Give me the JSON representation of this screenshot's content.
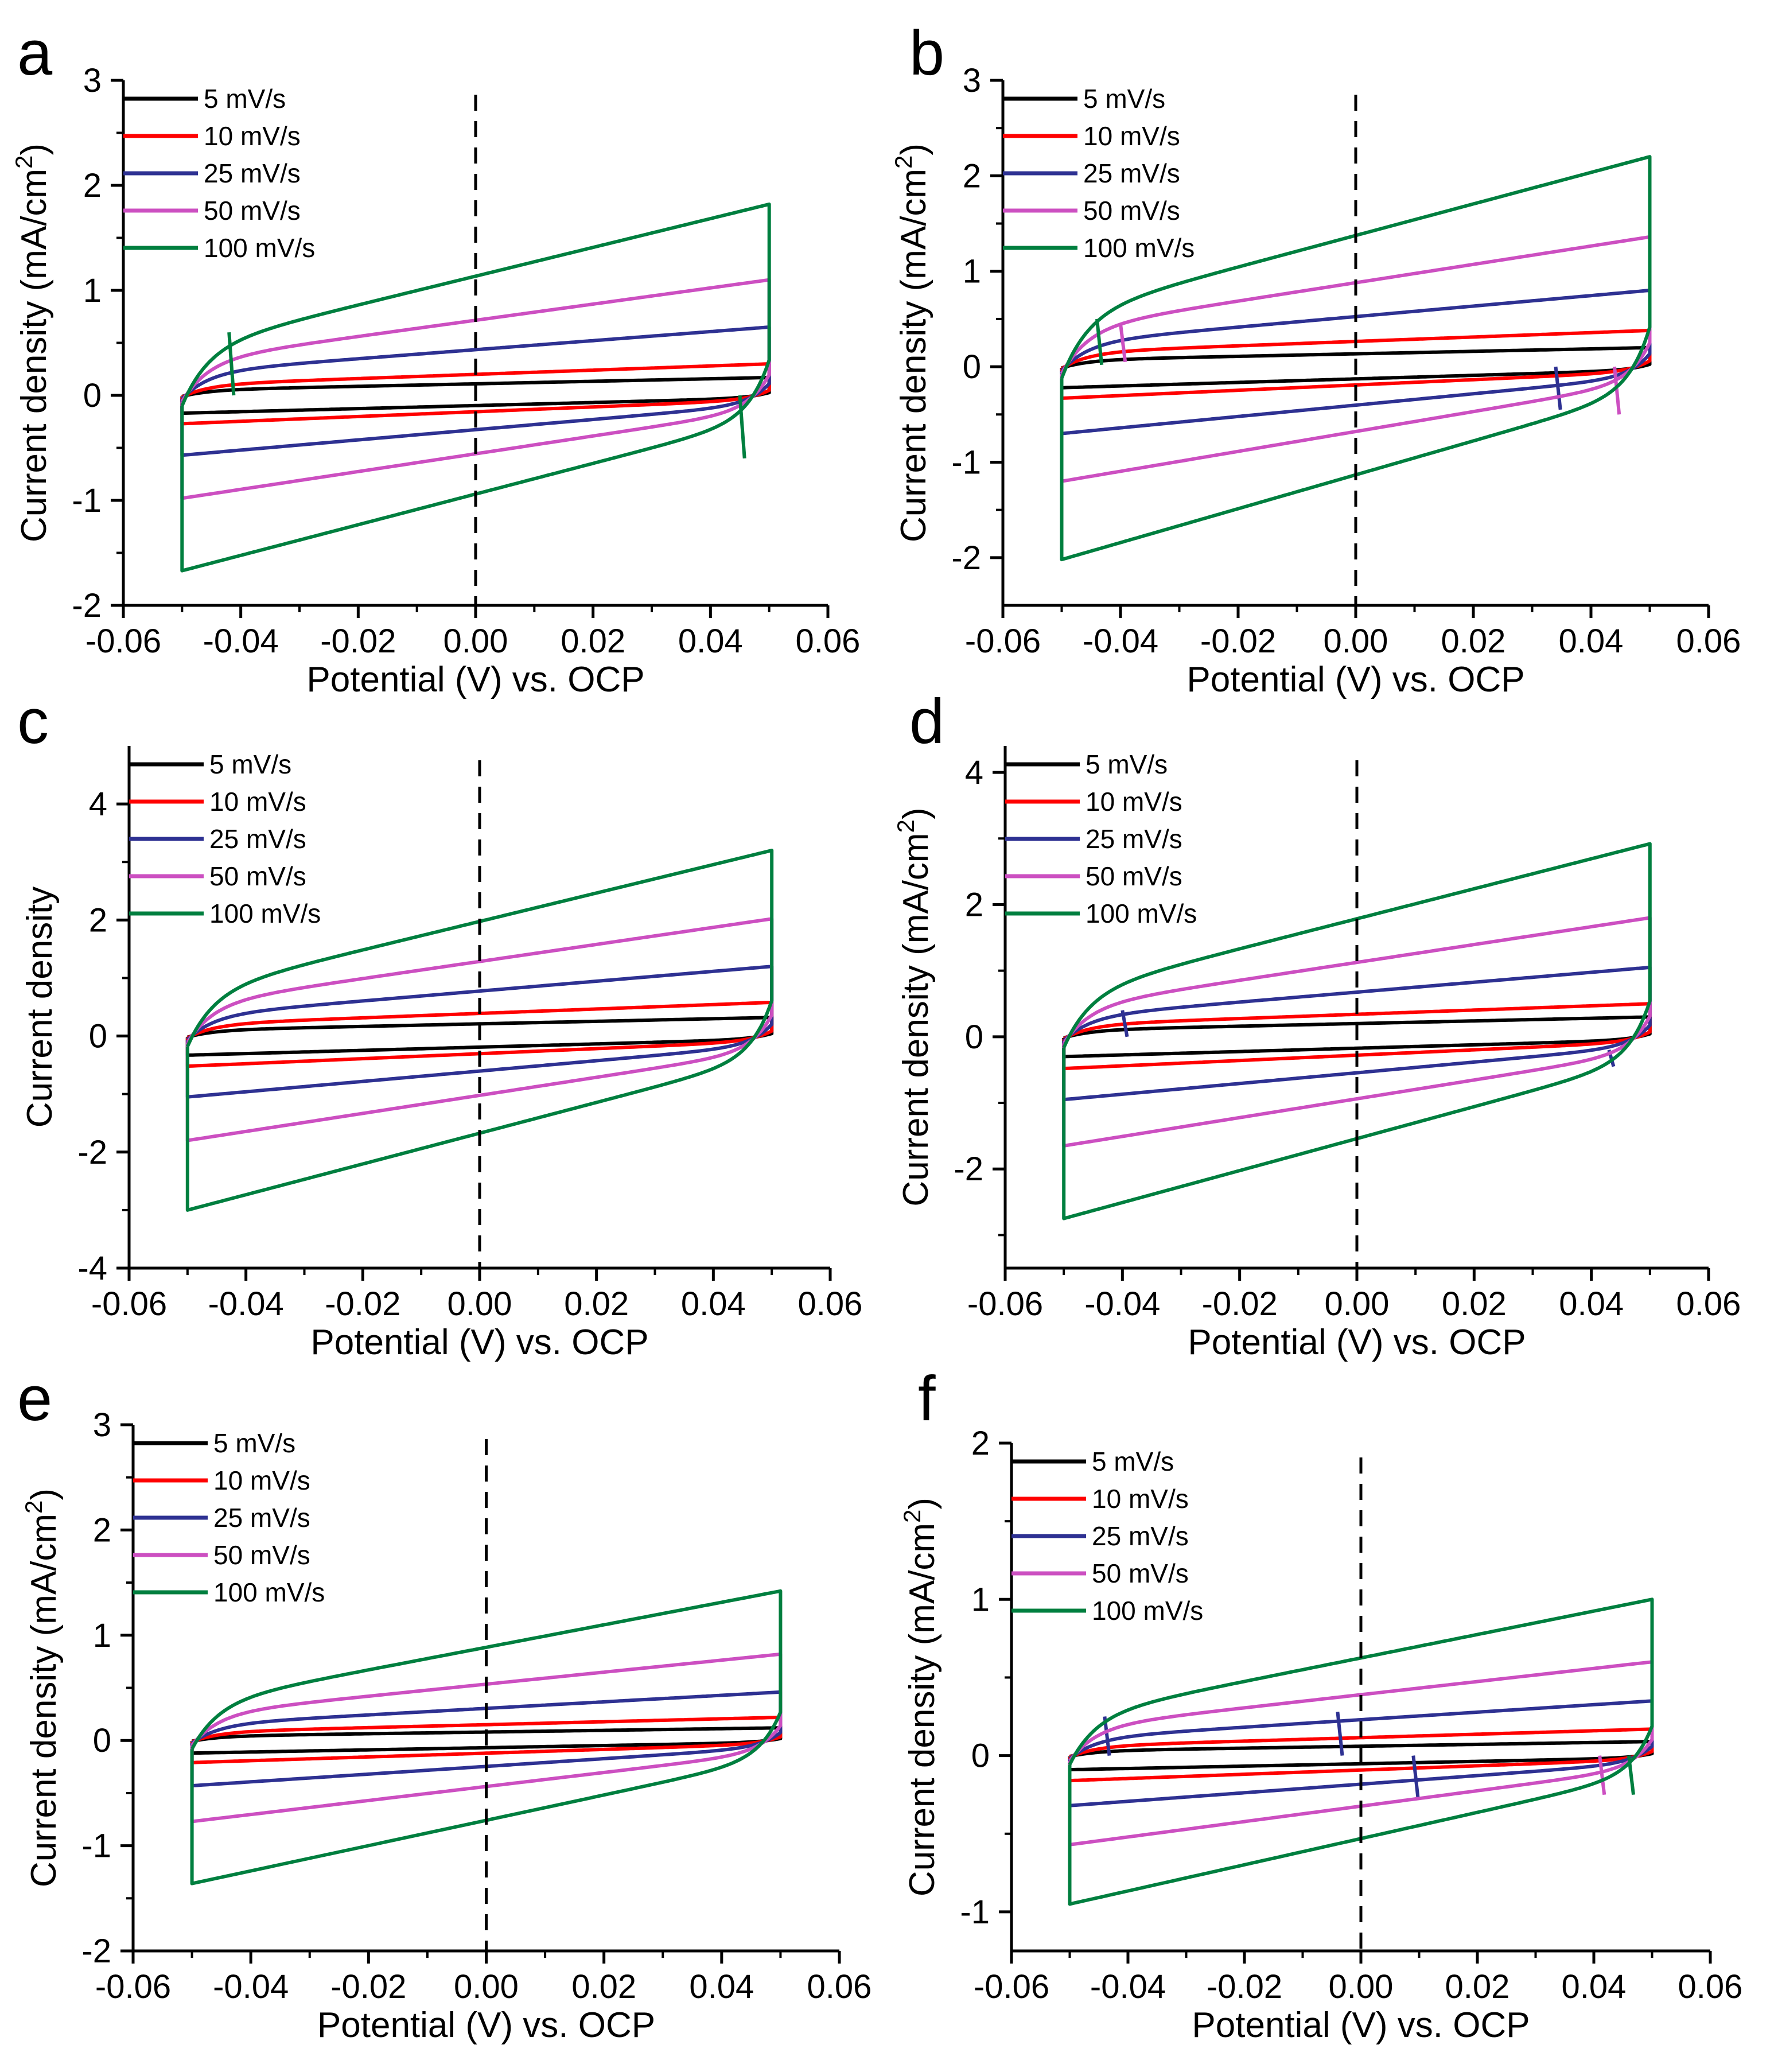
{
  "figure": {
    "shared_xlabel": "Potential (V) vs. OCP"
  },
  "chart_data": [
    {
      "panel": "a",
      "type": "line",
      "title": "",
      "xlabel": "Potential (V) vs. OCP",
      "ylabel": "Current density (mA/cm",
      "ylabel_sup": "2",
      "ylabel_end": ")",
      "xlim": [
        -0.06,
        0.06
      ],
      "ylim": [
        -2,
        3
      ],
      "xticks": [
        -0.06,
        -0.04,
        -0.02,
        0.0,
        0.02,
        0.04,
        0.06
      ],
      "xtick_labels": [
        "-0.06",
        "-0.04",
        "-0.02",
        "0.00",
        "0.02",
        "0.04",
        "0.06"
      ],
      "yticks": [
        -2,
        -1,
        0,
        1,
        2,
        3
      ],
      "ytick_labels": [
        "-2",
        "-1",
        "0",
        "1",
        "2",
        "3"
      ],
      "vline_x": 0.0,
      "legend_position": "top-left",
      "series": [
        {
          "name": "5 mV/s",
          "color": "#000000",
          "upper_start": 0.05,
          "upper_end": 0.17,
          "lower_start": -0.17,
          "lower_end": -0.07,
          "glitches": []
        },
        {
          "name": "10 mV/s",
          "color": "#ff0000",
          "upper_start": 0.1,
          "upper_end": 0.3,
          "lower_start": -0.27,
          "lower_end": -0.12,
          "glitches": []
        },
        {
          "name": "25 mV/s",
          "color": "#2e3192",
          "upper_start": 0.22,
          "upper_end": 0.65,
          "lower_start": -0.57,
          "lower_end": -0.24,
          "glitches": []
        },
        {
          "name": "50 mV/s",
          "color": "#cc4fc1",
          "upper_start": 0.33,
          "upper_end": 1.1,
          "lower_start": -0.98,
          "lower_end": -0.38,
          "glitches": []
        },
        {
          "name": "100 mV/s",
          "color": "#007f3f",
          "upper_start": 0.45,
          "upper_end": 1.82,
          "lower_start": -1.67,
          "lower_end": -0.6,
          "glitches": [
            {
              "x": -0.042,
              "y_top": 0.6,
              "y_bottom": 0.0
            },
            {
              "x": 0.045,
              "y_top": 0.0,
              "y_bottom": -0.6
            }
          ]
        }
      ]
    },
    {
      "panel": "b",
      "type": "line",
      "title": "",
      "xlabel": "Potential (V) vs. OCP",
      "ylabel": "Current density (mA/cm",
      "ylabel_sup": "2",
      "ylabel_end": ")",
      "xlim": [
        -0.06,
        0.06
      ],
      "ylim": [
        -2.5,
        3
      ],
      "xticks": [
        -0.06,
        -0.04,
        -0.02,
        0.0,
        0.02,
        0.04,
        0.06
      ],
      "xtick_labels": [
        "-0.06",
        "-0.04",
        "-0.02",
        "0.00",
        "0.02",
        "0.04",
        "0.06"
      ],
      "yticks": [
        -2,
        -1,
        0,
        1,
        2,
        3
      ],
      "ytick_labels": [
        "-2",
        "-1",
        "0",
        "1",
        "2",
        "3"
      ],
      "vline_x": 0.0,
      "legend_position": "top-left",
      "series": [
        {
          "name": "5 mV/s",
          "color": "#000000",
          "upper_start": 0.07,
          "upper_end": 0.2,
          "lower_start": -0.22,
          "lower_end": -0.1,
          "glitches": []
        },
        {
          "name": "10 mV/s",
          "color": "#ff0000",
          "upper_start": 0.15,
          "upper_end": 0.38,
          "lower_start": -0.33,
          "lower_end": -0.15,
          "glitches": []
        },
        {
          "name": "25 mV/s",
          "color": "#2e3192",
          "upper_start": 0.25,
          "upper_end": 0.8,
          "lower_start": -0.7,
          "lower_end": -0.3,
          "glitches": [
            {
              "x": 0.034,
              "y_top": 0.0,
              "y_bottom": -0.45
            }
          ]
        },
        {
          "name": "50 mV/s",
          "color": "#cc4fc1",
          "upper_start": 0.4,
          "upper_end": 1.36,
          "lower_start": -1.2,
          "lower_end": -0.45,
          "glitches": [
            {
              "x": -0.04,
              "y_top": 0.45,
              "y_bottom": 0.05
            },
            {
              "x": 0.044,
              "y_top": 0.0,
              "y_bottom": -0.5
            }
          ]
        },
        {
          "name": "100 mV/s",
          "color": "#007f3f",
          "upper_start": 0.55,
          "upper_end": 2.2,
          "lower_start": -2.02,
          "lower_end": -0.7,
          "glitches": [
            {
              "x": -0.044,
              "y_top": 0.5,
              "y_bottom": 0.02
            }
          ]
        }
      ]
    },
    {
      "panel": "c",
      "type": "line",
      "title": "",
      "xlabel": "Potential (V) vs. OCP",
      "ylabel": "Current density",
      "ylabel_sup": "",
      "ylabel_end": "",
      "xlim": [
        -0.06,
        0.06
      ],
      "ylim": [
        -4,
        5
      ],
      "xticks": [
        -0.06,
        -0.04,
        -0.02,
        0.0,
        0.02,
        0.04,
        0.06
      ],
      "xtick_labels": [
        "-0.06",
        "-0.04",
        "-0.02",
        "0.00",
        "0.02",
        "0.04",
        "0.06"
      ],
      "yticks": [
        -4,
        -2,
        0,
        2,
        4
      ],
      "ytick_labels": [
        "-4",
        "-2",
        "0",
        "2",
        "4"
      ],
      "vline_x": 0.0,
      "legend_position": "top-left",
      "series": [
        {
          "name": "5 mV/s",
          "color": "#000000",
          "upper_start": 0.1,
          "upper_end": 0.32,
          "lower_start": -0.33,
          "lower_end": -0.15,
          "glitches": []
        },
        {
          "name": "10 mV/s",
          "color": "#ff0000",
          "upper_start": 0.2,
          "upper_end": 0.58,
          "lower_start": -0.52,
          "lower_end": -0.25,
          "glitches": []
        },
        {
          "name": "25 mV/s",
          "color": "#2e3192",
          "upper_start": 0.35,
          "upper_end": 1.2,
          "lower_start": -1.05,
          "lower_end": -0.45,
          "glitches": []
        },
        {
          "name": "50 mV/s",
          "color": "#cc4fc1",
          "upper_start": 0.55,
          "upper_end": 2.02,
          "lower_start": -1.8,
          "lower_end": -0.7,
          "glitches": []
        },
        {
          "name": "100 mV/s",
          "color": "#007f3f",
          "upper_start": 0.75,
          "upper_end": 3.2,
          "lower_start": -3.0,
          "lower_end": -1.0,
          "glitches": []
        }
      ]
    },
    {
      "panel": "d",
      "type": "line",
      "title": "",
      "xlabel": "Potential (V) vs. OCP",
      "ylabel": "Current density (mA/cm",
      "ylabel_sup": "2",
      "ylabel_end": ")",
      "xlim": [
        -0.06,
        0.06
      ],
      "ylim": [
        -3.5,
        4.4
      ],
      "xticks": [
        -0.06,
        -0.04,
        -0.02,
        0.0,
        0.02,
        0.04,
        0.06
      ],
      "xtick_labels": [
        "-0.06",
        "-0.04",
        "-0.02",
        "0.00",
        "0.02",
        "0.04",
        "0.06"
      ],
      "yticks": [
        -2,
        0,
        2,
        4
      ],
      "ytick_labels": [
        "-2",
        "0",
        "2",
        "4"
      ],
      "vline_x": 0.0,
      "legend_position": "top-left",
      "series": [
        {
          "name": "5 mV/s",
          "color": "#000000",
          "upper_start": 0.1,
          "upper_end": 0.3,
          "lower_start": -0.3,
          "lower_end": -0.13,
          "glitches": []
        },
        {
          "name": "10 mV/s",
          "color": "#ff0000",
          "upper_start": 0.18,
          "upper_end": 0.5,
          "lower_start": -0.48,
          "lower_end": -0.22,
          "glitches": []
        },
        {
          "name": "25 mV/s",
          "color": "#2e3192",
          "upper_start": 0.3,
          "upper_end": 1.05,
          "lower_start": -0.95,
          "lower_end": -0.4,
          "glitches": [
            {
              "x": -0.04,
              "y_top": 0.4,
              "y_bottom": 0.0
            },
            {
              "x": 0.043,
              "y_top": -0.2,
              "y_bottom": -0.45
            }
          ]
        },
        {
          "name": "50 mV/s",
          "color": "#cc4fc1",
          "upper_start": 0.45,
          "upper_end": 1.8,
          "lower_start": -1.65,
          "lower_end": -0.65,
          "glitches": []
        },
        {
          "name": "100 mV/s",
          "color": "#007f3f",
          "upper_start": 0.65,
          "upper_end": 2.92,
          "lower_start": -2.75,
          "lower_end": -0.95,
          "glitches": []
        }
      ]
    },
    {
      "panel": "e",
      "type": "line",
      "title": "",
      "xlabel": "Potential (V) vs. OCP",
      "ylabel": "Current density (mA/cm",
      "ylabel_sup": "2",
      "ylabel_end": ")",
      "xlim": [
        -0.06,
        0.06
      ],
      "ylim": [
        -2,
        3
      ],
      "xticks": [
        -0.06,
        -0.04,
        -0.02,
        0.0,
        0.02,
        0.04,
        0.06
      ],
      "xtick_labels": [
        "-0.06",
        "-0.04",
        "-0.02",
        "0.00",
        "0.02",
        "0.04",
        "0.06"
      ],
      "yticks": [
        -2,
        -1,
        0,
        1,
        2,
        3
      ],
      "ytick_labels": [
        "-2",
        "-1",
        "0",
        "1",
        "2",
        "3"
      ],
      "vline_x": 0.0,
      "legend_position": "top-left",
      "series": [
        {
          "name": "5 mV/s",
          "color": "#000000",
          "upper_start": 0.04,
          "upper_end": 0.12,
          "lower_start": -0.12,
          "lower_end": -0.05,
          "glitches": []
        },
        {
          "name": "10 mV/s",
          "color": "#ff0000",
          "upper_start": 0.08,
          "upper_end": 0.22,
          "lower_start": -0.21,
          "lower_end": -0.09,
          "glitches": []
        },
        {
          "name": "25 mV/s",
          "color": "#2e3192",
          "upper_start": 0.15,
          "upper_end": 0.46,
          "lower_start": -0.43,
          "lower_end": -0.18,
          "glitches": []
        },
        {
          "name": "50 mV/s",
          "color": "#cc4fc1",
          "upper_start": 0.25,
          "upper_end": 0.82,
          "lower_start": -0.77,
          "lower_end": -0.3,
          "glitches": []
        },
        {
          "name": "100 mV/s",
          "color": "#007f3f",
          "upper_start": 0.35,
          "upper_end": 1.42,
          "lower_start": -1.36,
          "lower_end": -0.45,
          "glitches": []
        }
      ]
    },
    {
      "panel": "f",
      "type": "line",
      "title": "",
      "xlabel": "Potential (V) vs. OCP",
      "ylabel": "Current density (mA/cm",
      "ylabel_sup": "2",
      "ylabel_end": ")",
      "xlim": [
        -0.06,
        0.06
      ],
      "ylim": [
        -1.25,
        2
      ],
      "xticks": [
        -0.06,
        -0.04,
        -0.02,
        0.0,
        0.02,
        0.04,
        0.06
      ],
      "xtick_labels": [
        "-0.06",
        "-0.04",
        "-0.02",
        "0.00",
        "0.02",
        "0.04",
        "0.06"
      ],
      "yticks": [
        -1,
        0,
        1,
        2
      ],
      "ytick_labels": [
        "-1",
        "0",
        "1",
        "2"
      ],
      "vline_x": 0.0,
      "legend_position": "top-left",
      "series": [
        {
          "name": "5 mV/s",
          "color": "#000000",
          "upper_start": 0.03,
          "upper_end": 0.09,
          "lower_start": -0.09,
          "lower_end": -0.04,
          "glitches": []
        },
        {
          "name": "10 mV/s",
          "color": "#ff0000",
          "upper_start": 0.06,
          "upper_end": 0.17,
          "lower_start": -0.16,
          "lower_end": -0.07,
          "glitches": []
        },
        {
          "name": "25 mV/s",
          "color": "#2e3192",
          "upper_start": 0.11,
          "upper_end": 0.35,
          "lower_start": -0.32,
          "lower_end": -0.13,
          "glitches": [
            {
              "x": -0.004,
              "y_top": 0.28,
              "y_bottom": 0.0
            },
            {
              "x": 0.009,
              "y_top": 0.0,
              "y_bottom": -0.27
            },
            {
              "x": -0.044,
              "y_top": 0.25,
              "y_bottom": 0.0
            }
          ]
        },
        {
          "name": "50 mV/s",
          "color": "#cc4fc1",
          "upper_start": 0.18,
          "upper_end": 0.6,
          "lower_start": -0.57,
          "lower_end": -0.22,
          "glitches": [
            {
              "x": 0.041,
              "y_top": 0.0,
              "y_bottom": -0.25
            }
          ]
        },
        {
          "name": "100 mV/s",
          "color": "#007f3f",
          "upper_start": 0.25,
          "upper_end": 1.0,
          "lower_start": -0.95,
          "lower_end": -0.32,
          "glitches": [
            {
              "x": 0.046,
              "y_top": 0.0,
              "y_bottom": -0.25
            }
          ]
        }
      ]
    }
  ]
}
